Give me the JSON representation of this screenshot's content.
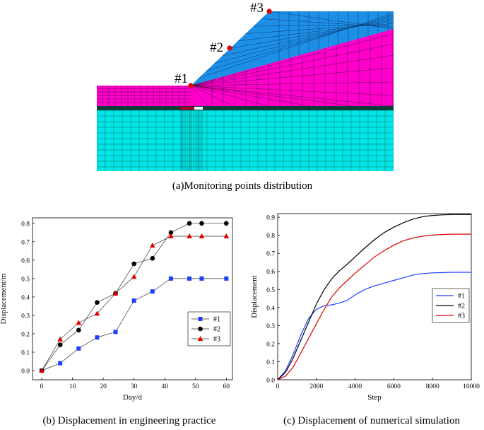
{
  "mesh": {
    "caption": "(a)Monitoring points distribution",
    "points": [
      "#1",
      "#2",
      "#3"
    ],
    "colors": {
      "soil": "#ff00cc",
      "slope": "#1e8fe6",
      "foundation": "#00e6e6",
      "layer": "#0d3d36",
      "point": "#e00000"
    }
  },
  "chart_data": [
    {
      "type": "line",
      "caption": "(b) Displacement in engineering practice",
      "xlabel": "Day/d",
      "ylabel": "Displacement/m",
      "xlim": [
        -3,
        62
      ],
      "ylim": [
        -0.05,
        0.83
      ],
      "xticks": [
        0,
        10,
        20,
        30,
        40,
        50,
        60
      ],
      "yticks": [
        0.0,
        0.1,
        0.2,
        0.3,
        0.4,
        0.5,
        0.6,
        0.7,
        0.8
      ],
      "legend": "right",
      "series": [
        {
          "name": "#1",
          "color": "#1f3fff",
          "marker": "square",
          "x": [
            0,
            6,
            12,
            18,
            24,
            30,
            36,
            42,
            48,
            52,
            60
          ],
          "y": [
            0.0,
            0.04,
            0.12,
            0.18,
            0.21,
            0.38,
            0.43,
            0.5,
            0.5,
            0.5,
            0.5
          ]
        },
        {
          "name": "#2",
          "color": "#000000",
          "marker": "circle",
          "x": [
            0,
            6,
            12,
            18,
            24,
            30,
            36,
            42,
            48,
            52,
            60
          ],
          "y": [
            0.0,
            0.14,
            0.22,
            0.37,
            0.42,
            0.58,
            0.61,
            0.75,
            0.8,
            0.8,
            0.8
          ]
        },
        {
          "name": "#3",
          "color": "#e00000",
          "marker": "triangle",
          "x": [
            0,
            6,
            12,
            18,
            24,
            30,
            36,
            42,
            48,
            52,
            60
          ],
          "y": [
            0.0,
            0.17,
            0.26,
            0.31,
            0.42,
            0.51,
            0.68,
            0.73,
            0.73,
            0.73,
            0.73
          ]
        }
      ]
    },
    {
      "type": "line",
      "caption": "(c) Displacement of numerical simulation",
      "xlabel": "Step",
      "ylabel": "Displacement",
      "xlim": [
        0,
        10000
      ],
      "ylim": [
        0,
        0.92
      ],
      "xticks": [
        0,
        2000,
        4000,
        6000,
        8000,
        10000
      ],
      "yticks": [
        0.0,
        0.1,
        0.2,
        0.3,
        0.4,
        0.5,
        0.6,
        0.7,
        0.8,
        0.9
      ],
      "legend": "right",
      "series": [
        {
          "name": "#1",
          "color": "#1f3fff",
          "x": [
            0,
            400,
            800,
            1200,
            1600,
            2000,
            2400,
            2800,
            3200,
            3600,
            4000,
            4500,
            5000,
            5500,
            6000,
            6500,
            7000,
            7500,
            8000,
            9000,
            10000
          ],
          "y": [
            0,
            0.05,
            0.14,
            0.25,
            0.34,
            0.39,
            0.41,
            0.415,
            0.425,
            0.44,
            0.47,
            0.5,
            0.52,
            0.535,
            0.55,
            0.565,
            0.58,
            0.588,
            0.592,
            0.595,
            0.595
          ]
        },
        {
          "name": "#2",
          "color": "#000000",
          "x": [
            0,
            400,
            800,
            1200,
            1600,
            2000,
            2400,
            2800,
            3200,
            3600,
            4000,
            4500,
            5000,
            5500,
            6000,
            6500,
            7000,
            7500,
            8000,
            8500,
            9000,
            10000
          ],
          "y": [
            0,
            0.04,
            0.12,
            0.22,
            0.32,
            0.42,
            0.5,
            0.56,
            0.605,
            0.64,
            0.68,
            0.73,
            0.775,
            0.815,
            0.845,
            0.87,
            0.89,
            0.903,
            0.91,
            0.913,
            0.915,
            0.915
          ]
        },
        {
          "name": "#3",
          "color": "#e00000",
          "x": [
            0,
            400,
            800,
            1200,
            1600,
            2000,
            2400,
            2800,
            3200,
            3600,
            4000,
            4500,
            5000,
            5500,
            6000,
            6500,
            7000,
            7500,
            8000,
            8500,
            9000,
            10000
          ],
          "y": [
            0,
            0.02,
            0.07,
            0.15,
            0.23,
            0.31,
            0.39,
            0.46,
            0.51,
            0.55,
            0.59,
            0.635,
            0.68,
            0.715,
            0.745,
            0.77,
            0.785,
            0.795,
            0.801,
            0.804,
            0.806,
            0.806
          ]
        }
      ]
    }
  ]
}
